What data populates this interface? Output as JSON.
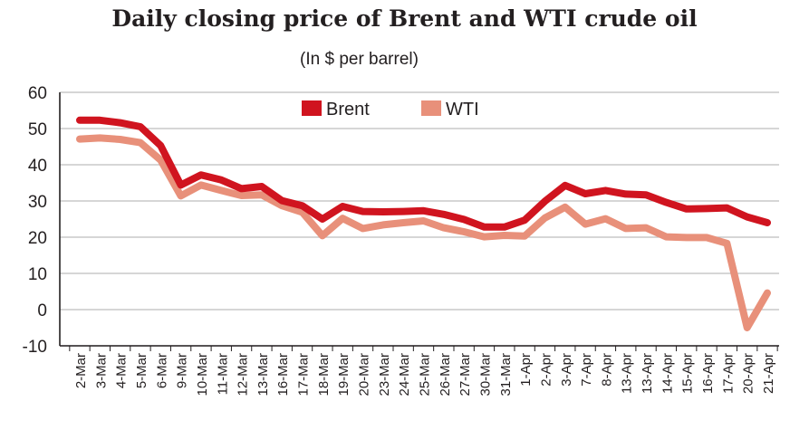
{
  "chart_data": {
    "type": "line",
    "title": "Daily closing price of Brent and WTI crude oil",
    "subtitle": "(In $ per barrel)",
    "xlabel": "",
    "ylabel": "",
    "ylim": [
      -10,
      60
    ],
    "yticks": [
      60,
      50,
      40,
      30,
      20,
      10,
      0,
      -10
    ],
    "grid": true,
    "legend_position": "top-center",
    "categories": [
      "2-Mar",
      "3-Mar",
      "4-Mar",
      "5-Mar",
      "6-Mar",
      "9-Mar",
      "10-Mar",
      "11-Mar",
      "12-Mar",
      "13-Mar",
      "16-Mar",
      "17-Mar",
      "18-Mar",
      "19-Mar",
      "20-Mar",
      "23-Mar",
      "24-Mar",
      "25-Mar",
      "26-Mar",
      "27-Mar",
      "30-Mar",
      "31-Mar",
      "1-Apr",
      "2-Apr",
      "3-Apr",
      "7-Apr",
      "8-Apr",
      "13-Apr",
      "13-Apr",
      "14-Apr",
      "15-Apr",
      "16-Apr",
      "17-Apr",
      "20-Apr",
      "21-Apr"
    ],
    "series": [
      {
        "name": "Brent",
        "color": "#d0141f",
        "values": [
          52.3,
          52.3,
          51.6,
          50.5,
          45.3,
          34.4,
          37.2,
          35.8,
          33.4,
          34.0,
          30.1,
          28.7,
          25.0,
          28.5,
          27.1,
          27.0,
          27.1,
          27.3,
          26.3,
          24.9,
          22.8,
          22.8,
          24.7,
          29.9,
          34.3,
          32.0,
          32.9,
          31.9,
          31.7,
          29.6,
          27.8,
          27.9,
          28.1,
          25.6,
          24.0
        ]
      },
      {
        "name": "WTI",
        "color": "#e8907a",
        "values": [
          47.1,
          47.4,
          47.0,
          46.1,
          41.3,
          31.4,
          34.4,
          32.9,
          31.5,
          31.7,
          28.7,
          26.9,
          20.4,
          25.2,
          22.4,
          23.4,
          24.0,
          24.5,
          22.6,
          21.5,
          20.1,
          20.5,
          20.3,
          25.3,
          28.3,
          23.6,
          25.1,
          22.4,
          22.6,
          20.1,
          19.9,
          19.9,
          18.3,
          -5.0,
          4.6
        ]
      }
    ]
  }
}
